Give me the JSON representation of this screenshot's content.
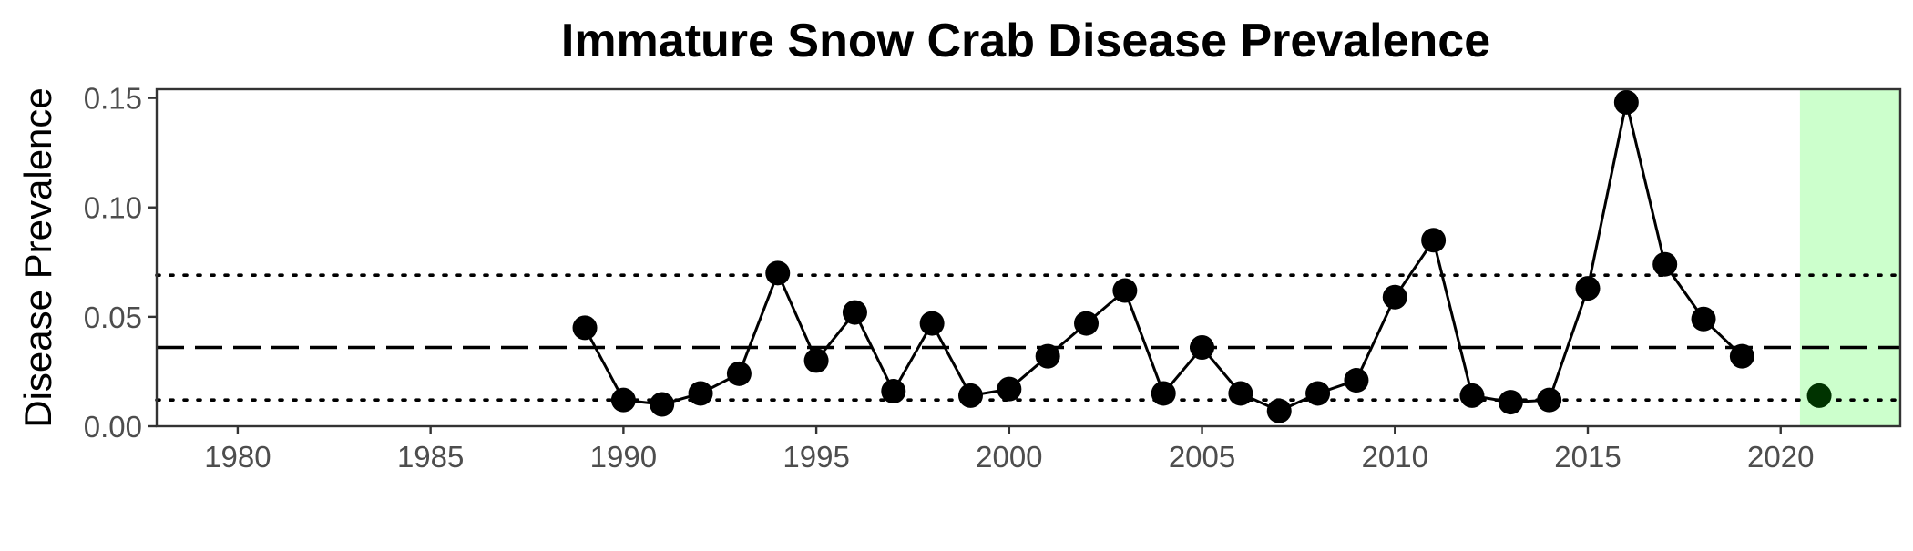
{
  "chart_data": {
    "type": "scatter",
    "title": "Immature Snow Crab Disease Prevalence",
    "xlabel": "",
    "ylabel": "Disease Prevalence",
    "xlim": [
      1977.9,
      2023.1
    ],
    "ylim": [
      0,
      0.154
    ],
    "x_ticks": [
      1980,
      1985,
      1990,
      1995,
      2000,
      2005,
      2010,
      2015,
      2020
    ],
    "x_tick_labels": [
      "1980",
      "1985",
      "1990",
      "1995",
      "2000",
      "2005",
      "2010",
      "2015",
      "2020"
    ],
    "y_ticks": [
      0,
      0.05,
      0.1,
      0.15
    ],
    "y_tick_labels": [
      "0.00",
      "0.05",
      "0.10",
      "0.15"
    ],
    "grid": false,
    "series": [
      {
        "style": "line+points",
        "x": [
          1989,
          1990,
          1991,
          1992,
          1993,
          1994,
          1995,
          1996,
          1997,
          1998,
          1999,
          2000,
          2001,
          2002,
          2003,
          2004,
          2005,
          2006,
          2007,
          2008,
          2009,
          2010,
          2011,
          2012,
          2013,
          2014,
          2015,
          2016,
          2017,
          2018,
          2019
        ],
        "y": [
          0.045,
          0.012,
          0.01,
          0.015,
          0.024,
          0.07,
          0.03,
          0.052,
          0.016,
          0.047,
          0.014,
          0.017,
          0.032,
          0.047,
          0.062,
          0.015,
          0.036,
          0.015,
          0.007,
          0.015,
          0.021,
          0.059,
          0.085,
          0.014,
          0.011,
          0.012,
          0.063,
          0.148,
          0.074,
          0.049,
          0.032
        ],
        "color": "#000000"
      },
      {
        "style": "point",
        "x": [
          2021
        ],
        "y": [
          0.014
        ],
        "color": "#003300"
      }
    ],
    "reference_lines": [
      {
        "style": "dashed",
        "y": 0.036,
        "color": "#000000"
      },
      {
        "style": "dotted",
        "y": 0.069,
        "color": "#000000"
      },
      {
        "style": "dotted",
        "y": 0.012,
        "color": "#000000"
      }
    ],
    "highlight_region": {
      "x_start": 2020.5,
      "x_end": 2023.1,
      "color": "#ccffcc"
    },
    "colors": {
      "panel_border": "#333333",
      "tick_label": "#4d4d4d"
    }
  }
}
